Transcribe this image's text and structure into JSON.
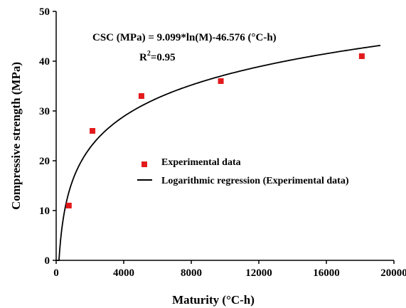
{
  "chart_data": {
    "type": "scatter",
    "title": "",
    "xlabel": "Maturity (°C-h)",
    "ylabel": "Compressive strength (MPa)",
    "xlim": [
      0,
      20000
    ],
    "ylim": [
      0,
      50
    ],
    "x_ticks": [
      "0",
      "4000",
      "8000",
      "12000",
      "16000",
      "20000"
    ],
    "y_ticks": [
      "0",
      "10",
      "20",
      "30",
      "40",
      "50"
    ],
    "grid": false,
    "legend_position": "center-right",
    "series": [
      {
        "name": "Experimental data",
        "kind": "scatter",
        "marker": "square",
        "color": "#e31a1c",
        "x": [
          750,
          2150,
          5050,
          9750,
          18100
        ],
        "y": [
          11,
          26,
          33,
          36,
          41
        ]
      },
      {
        "name": "Logarithmic regression (Experimental data)",
        "kind": "line",
        "color": "#000000",
        "equation": {
          "a": 9.099,
          "b": -46.576,
          "form": "a*ln(x)+b"
        },
        "x_start": 0,
        "x_end": 19200
      }
    ],
    "annotations": {
      "equation_text": "CSC (MPa) = 9.099*ln(M)-46.576 (°C-h)",
      "r2_label": "R",
      "r2_sup": "2",
      "r2_value": "=0.95"
    }
  }
}
